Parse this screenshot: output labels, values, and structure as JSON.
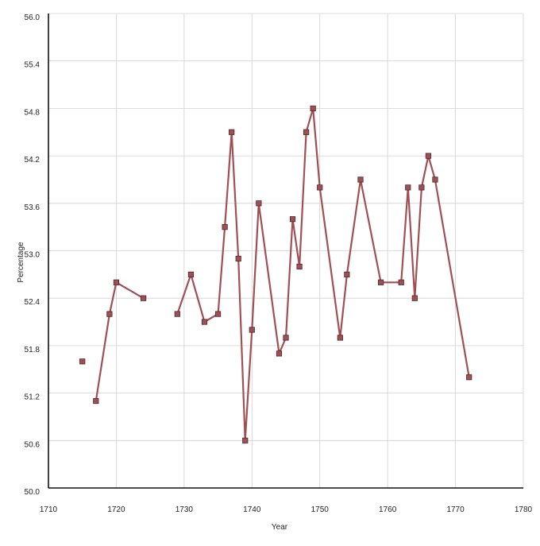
{
  "chart_data": {
    "type": "line",
    "title": "",
    "xlabel": "Year",
    "ylabel": "Percentage",
    "xlim": [
      1710,
      1780
    ],
    "ylim": [
      50.0,
      56.0
    ],
    "x_ticks": [
      "1710",
      "1720",
      "1730",
      "1740",
      "1750",
      "1760",
      "1770",
      "1780"
    ],
    "y_ticks": [
      "50.0",
      "50.6",
      "51.2",
      "51.8",
      "52.4",
      "53.0",
      "53.6",
      "54.2",
      "54.8",
      "55.4",
      "56.0"
    ],
    "grid": true,
    "legend": "none",
    "series": [
      {
        "color": "#a05055",
        "marker": "square",
        "points": [
          {
            "x": 1715,
            "y": 51.6
          },
          {
            "x": 1717,
            "y": 51.1
          },
          {
            "x": 1719,
            "y": 52.2
          },
          {
            "x": 1720,
            "y": 52.6
          },
          {
            "x": 1724,
            "y": 52.4
          },
          {
            "x": 1729,
            "y": 52.2
          },
          {
            "x": 1731,
            "y": 52.7
          },
          {
            "x": 1733,
            "y": 52.1
          },
          {
            "x": 1735,
            "y": 52.2
          },
          {
            "x": 1736,
            "y": 53.3
          },
          {
            "x": 1737,
            "y": 54.5
          },
          {
            "x": 1738,
            "y": 52.9
          },
          {
            "x": 1739,
            "y": 50.6
          },
          {
            "x": 1740,
            "y": 52.0
          },
          {
            "x": 1741,
            "y": 53.6
          },
          {
            "x": 1744,
            "y": 51.7
          },
          {
            "x": 1745,
            "y": 51.9
          },
          {
            "x": 1746,
            "y": 53.4
          },
          {
            "x": 1747,
            "y": 52.8
          },
          {
            "x": 1748,
            "y": 54.5
          },
          {
            "x": 1749,
            "y": 54.8
          },
          {
            "x": 1750,
            "y": 53.8
          },
          {
            "x": 1753,
            "y": 51.9
          },
          {
            "x": 1754,
            "y": 52.7
          },
          {
            "x": 1756,
            "y": 53.9
          },
          {
            "x": 1759,
            "y": 52.6
          },
          {
            "x": 1762,
            "y": 52.6
          },
          {
            "x": 1763,
            "y": 53.8
          },
          {
            "x": 1764,
            "y": 52.4
          },
          {
            "x": 1765,
            "y": 53.8
          },
          {
            "x": 1766,
            "y": 54.2
          },
          {
            "x": 1767,
            "y": 53.9
          },
          {
            "x": 1772,
            "y": 51.4
          }
        ],
        "connected_segments": [
          [
            0,
            0
          ],
          [
            1,
            4
          ],
          [
            5,
            32
          ]
        ]
      }
    ]
  }
}
